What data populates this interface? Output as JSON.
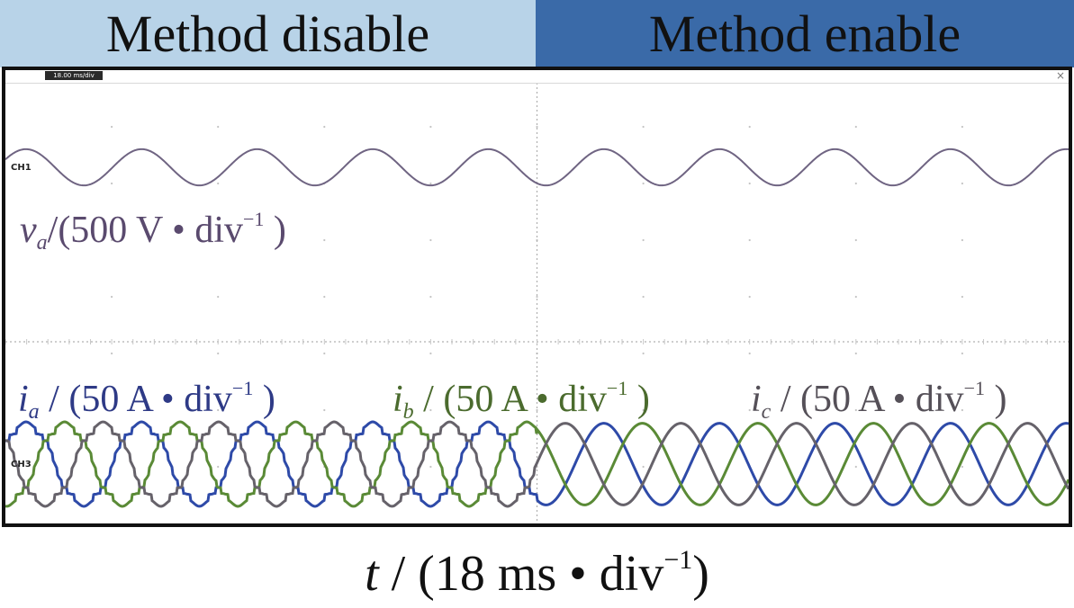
{
  "banners": {
    "left": {
      "text": "Method disable",
      "color": "#b8d3e8"
    },
    "right": {
      "text": "Method enable",
      "color": "#3a6aa8"
    }
  },
  "scope": {
    "timebase": "18.00 ms/div",
    "close_glyph": "×",
    "ch1": "CH1",
    "ch3": "CH3"
  },
  "labels": {
    "va": {
      "sym": "v",
      "sub": "a",
      "unit": "/(500 V • div",
      "sup": "−1",
      "end": " )"
    },
    "ia": {
      "sym": "i",
      "sub": "a",
      "unit": " / (50 A • div",
      "sup": "−1",
      "end": " )"
    },
    "ib": {
      "sym": "i",
      "sub": "b",
      "unit": " / (50 A • div",
      "sup": "−1",
      "end": " )"
    },
    "ic": {
      "sym": "i",
      "sub": "c",
      "unit": " / (50 A • div",
      "sup": "−1",
      "end": " )"
    },
    "time": {
      "sym": "t",
      "unit": " / (18 ms • div",
      "sup": "−1",
      "end": ")"
    }
  },
  "chart_data": {
    "type": "line",
    "xlabel": "t / (18 ms • div−1)",
    "x_divisions": 10,
    "y_divisions": 8,
    "grid": true,
    "method_switch_division": 5,
    "cycles_per_division": 0.92,
    "series": [
      {
        "name": "va",
        "unit": "500 V/div",
        "amplitude_div": 0.32,
        "phase_deg": 0,
        "color": "#6f6482",
        "distorted_before_switch": false
      },
      {
        "name": "ia",
        "unit": "50 A/div",
        "amplitude_div": 0.72,
        "phase_deg": 0,
        "color": "#2e4aa8",
        "distorted_before_switch": true
      },
      {
        "name": "ib",
        "unit": "50 A/div",
        "amplitude_div": 0.72,
        "phase_deg": -120,
        "color": "#5a8a36",
        "distorted_before_switch": true
      },
      {
        "name": "ic",
        "unit": "50 A/div",
        "amplitude_div": 0.72,
        "phase_deg": 120,
        "color": "#66626a",
        "distorted_before_switch": true
      }
    ]
  }
}
